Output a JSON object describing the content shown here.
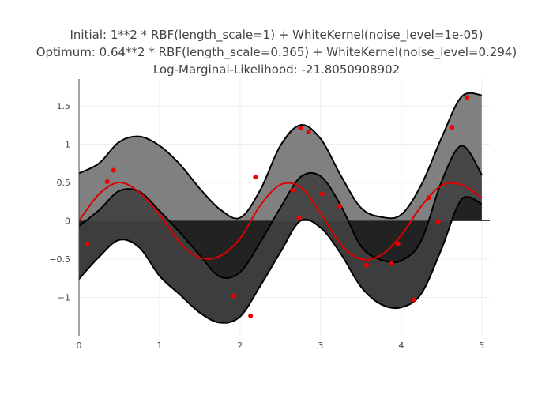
{
  "chart_data": {
    "type": "line",
    "title_lines": [
      "Initial: 1**2 * RBF(length_scale=1) + WhiteKernel(noise_level=1e-05)",
      "Optimum: 0.64**2 * RBF(length_scale=0.365) + WhiteKernel(noise_level=0.294)",
      "Log-Marginal-Likelihood: -21.8050908902"
    ],
    "xlabel": "",
    "ylabel": "",
    "xlim": [
      0,
      5.1
    ],
    "ylim": [
      -1.5,
      1.85
    ],
    "grid": true,
    "legend": "none",
    "x_ticks": [
      0,
      1,
      2,
      3,
      4,
      5
    ],
    "x_tick_labels": [
      "0",
      "1",
      "2",
      "3",
      "4",
      "5"
    ],
    "y_ticks": [
      -1,
      -0.5,
      0,
      0.5,
      1,
      1.5
    ],
    "y_tick_labels": [
      "−1",
      "−0.5",
      "0",
      "0.5",
      "1",
      "1.5"
    ],
    "colors": {
      "band_outer": "#808080",
      "band_middle": "#404040",
      "band_inner": "#222222",
      "band_stroke": "#000000",
      "true_function": "#dd0000",
      "observations": "#ee0000",
      "grid": "#eeeeee",
      "zero_line": "#444444",
      "axis_line": "#444444"
    },
    "series": [
      {
        "role": "upper_bound",
        "x": [
          0,
          0.25,
          0.5,
          0.75,
          1,
          1.25,
          1.5,
          1.75,
          2,
          2.25,
          2.5,
          2.75,
          3,
          3.25,
          3.5,
          3.75,
          4,
          4.25,
          4.5,
          4.75,
          5
        ],
        "y": [
          0.62,
          0.75,
          1.03,
          1.1,
          0.98,
          0.74,
          0.42,
          0.15,
          0.04,
          0.4,
          0.98,
          1.25,
          1.07,
          0.59,
          0.17,
          0.05,
          0.08,
          0.47,
          1.08,
          1.62,
          1.64
        ]
      },
      {
        "role": "mean",
        "x": [
          0,
          0.25,
          0.5,
          0.75,
          1,
          1.25,
          1.5,
          1.75,
          2,
          2.25,
          2.5,
          2.75,
          3,
          3.25,
          3.5,
          3.75,
          4,
          4.25,
          4.5,
          4.75,
          5
        ],
        "y": [
          -0.07,
          0.14,
          0.39,
          0.38,
          0.13,
          -0.15,
          -0.45,
          -0.73,
          -0.67,
          -0.28,
          0.17,
          0.57,
          0.58,
          0.2,
          -0.33,
          -0.51,
          -0.52,
          -0.26,
          0.51,
          0.98,
          0.6
        ]
      },
      {
        "role": "lower_bound",
        "x": [
          0,
          0.25,
          0.5,
          0.75,
          1,
          1.25,
          1.5,
          1.75,
          2,
          2.25,
          2.5,
          2.75,
          3,
          3.25,
          3.5,
          3.75,
          4,
          4.25,
          4.5,
          4.75,
          5
        ],
        "y": [
          -0.76,
          -0.47,
          -0.25,
          -0.35,
          -0.72,
          -0.96,
          -1.2,
          -1.33,
          -1.25,
          -0.85,
          -0.41,
          0.0,
          -0.09,
          -0.43,
          -0.86,
          -1.09,
          -1.13,
          -0.95,
          -0.37,
          0.28,
          0.22
        ]
      },
      {
        "role": "true_function",
        "name": "",
        "x": [
          0,
          0.25,
          0.5,
          0.75,
          1,
          1.25,
          1.5,
          1.75,
          2,
          2.25,
          2.5,
          2.75,
          3,
          3.25,
          3.5,
          3.75,
          4,
          4.25,
          4.5,
          4.75,
          5
        ],
        "y": [
          0.0,
          0.35,
          0.5,
          0.37,
          0.08,
          -0.28,
          -0.48,
          -0.46,
          -0.23,
          0.2,
          0.47,
          0.44,
          0.1,
          -0.31,
          -0.5,
          -0.45,
          -0.19,
          0.19,
          0.46,
          0.47,
          0.3
        ]
      }
    ],
    "observations": {
      "x": [
        0.1,
        0.35,
        0.43,
        1.92,
        2.13,
        2.19,
        2.65,
        2.73,
        2.75,
        2.85,
        3.02,
        3.24,
        3.57,
        3.88,
        3.96,
        4.16,
        4.34,
        4.46,
        4.63,
        4.82
      ],
      "y": [
        -0.3,
        0.51,
        0.66,
        -0.98,
        -1.24,
        0.57,
        0.4,
        0.04,
        1.21,
        1.16,
        0.35,
        0.19,
        -0.58,
        -0.56,
        -0.3,
        -1.03,
        0.3,
        -0.01,
        1.22,
        1.61
      ]
    }
  }
}
